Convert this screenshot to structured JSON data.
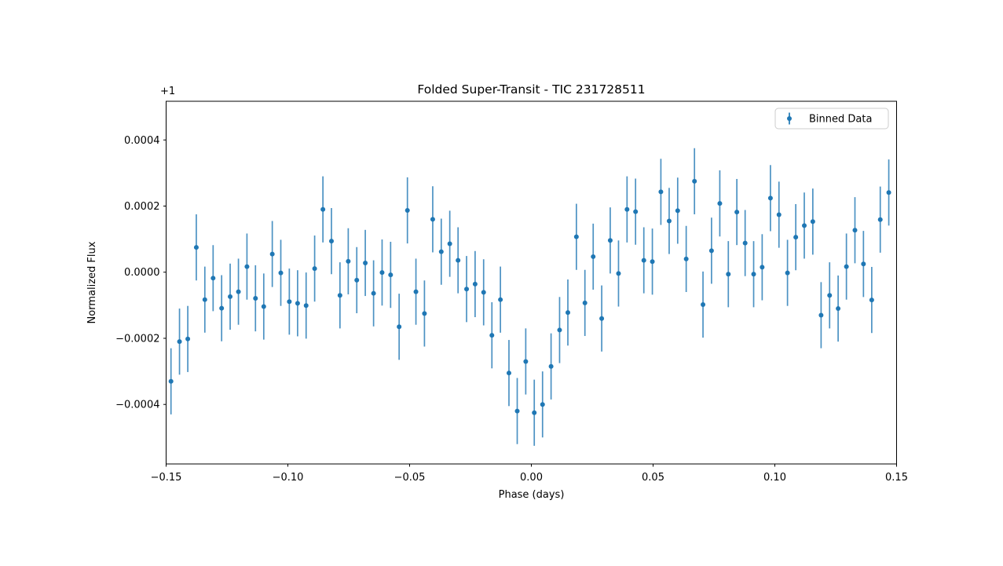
{
  "figure": {
    "background_color": "#ffffff",
    "axes_edge_color": "#000000"
  },
  "chart_data": {
    "type": "scatter",
    "subtype": "errorbar",
    "title": "Folded Super-Transit - TIC 231728511",
    "xlabel": "Phase (days)",
    "ylabel": "Normalized Flux",
    "y_offset_text": "+1",
    "grid": false,
    "legend": {
      "label": "Binned Data",
      "position": "upper right"
    },
    "marker_color": "#1f77b4",
    "errorbar_color": "#1f77b4",
    "xlim": [
      -0.15,
      0.15
    ],
    "ylim": [
      -0.00058,
      0.000517
    ],
    "x_ticks": [
      -0.15,
      -0.1,
      -0.05,
      0.0,
      0.05,
      0.1,
      0.15
    ],
    "x_tick_labels": [
      "−0.15",
      "−0.10",
      "−0.05",
      "0.00",
      "0.05",
      "0.10",
      "0.15"
    ],
    "y_ticks": [
      0.0004,
      0.0002,
      0.0,
      -0.0002,
      -0.0004
    ],
    "y_tick_labels": [
      "0.0004",
      "0.0002",
      "0.0000",
      "−0.0002",
      "−0.0004"
    ],
    "series": [
      {
        "name": "Binned Data",
        "yerr": 0.0001,
        "x": [
          -0.148,
          -0.1445,
          -0.1411,
          -0.1376,
          -0.1341,
          -0.1307,
          -0.1272,
          -0.1237,
          -0.1203,
          -0.1168,
          -0.1133,
          -0.1099,
          -0.1064,
          -0.1029,
          -0.0994,
          -0.096,
          -0.0925,
          -0.089,
          -0.0856,
          -0.0821,
          -0.0786,
          -0.0752,
          -0.0717,
          -0.0682,
          -0.0648,
          -0.0613,
          -0.0578,
          -0.0543,
          -0.0509,
          -0.0474,
          -0.0439,
          -0.0405,
          -0.037,
          -0.0335,
          -0.0301,
          -0.0266,
          -0.0231,
          -0.0196,
          -0.0162,
          -0.0127,
          -0.0092,
          -0.0058,
          -0.0023,
          0.0012,
          0.0046,
          0.0081,
          0.0116,
          0.015,
          0.0185,
          0.022,
          0.0254,
          0.0289,
          0.0324,
          0.0358,
          0.0393,
          0.0428,
          0.0462,
          0.0497,
          0.0532,
          0.0566,
          0.0601,
          0.0636,
          0.067,
          0.0705,
          0.074,
          0.0774,
          0.0809,
          0.0844,
          0.0878,
          0.0913,
          0.0948,
          0.0982,
          0.1017,
          0.1052,
          0.1086,
          0.1121,
          0.1156,
          0.119,
          0.1225,
          0.126,
          0.1294,
          0.1329,
          0.1364,
          0.1398,
          0.1433,
          0.1468
        ],
        "y": [
          -0.00033,
          -0.00021,
          -0.000202,
          7.5e-05,
          -8.3e-05,
          -1.8e-05,
          -0.000109,
          -7.4e-05,
          -5.9e-05,
          1.7e-05,
          -7.9e-05,
          -0.000104,
          5.5e-05,
          -2e-06,
          -8.9e-05,
          -9.4e-05,
          -0.000101,
          1.1e-05,
          0.00019,
          9.4e-05,
          -7e-05,
          3.3e-05,
          -2.4e-05,
          2.8e-05,
          -6.4e-05,
          -1e-06,
          -8e-06,
          -0.000165,
          0.000187,
          -5.9e-05,
          -0.000125,
          0.00016,
          6.2e-05,
          8.6e-05,
          3.6e-05,
          -5.1e-05,
          -3.6e-05,
          -6.1e-05,
          -0.000191,
          -8.3e-05,
          -0.000305,
          -0.00042,
          -0.00027,
          -0.000425,
          -0.0004,
          -0.000285,
          -0.000175,
          -0.000122,
          0.000107,
          -9.3e-05,
          4.7e-05,
          -0.00014,
          9.6e-05,
          -4e-06,
          0.00019,
          0.000183,
          3.6e-05,
          3.2e-05,
          0.000243,
          0.000155,
          0.000186,
          4e-05,
          0.000275,
          -9.8e-05,
          6.5e-05,
          0.000208,
          -6e-06,
          0.000182,
          8.8e-05,
          -6e-06,
          1.5e-05,
          0.000224,
          0.000174,
          -2e-06,
          0.000106,
          0.000141,
          0.000153,
          -0.00013,
          -7e-05,
          -0.00011,
          1.7e-05,
          0.000127,
          2.5e-05,
          -8.4e-05,
          0.000159,
          0.000241
        ]
      }
    ]
  }
}
